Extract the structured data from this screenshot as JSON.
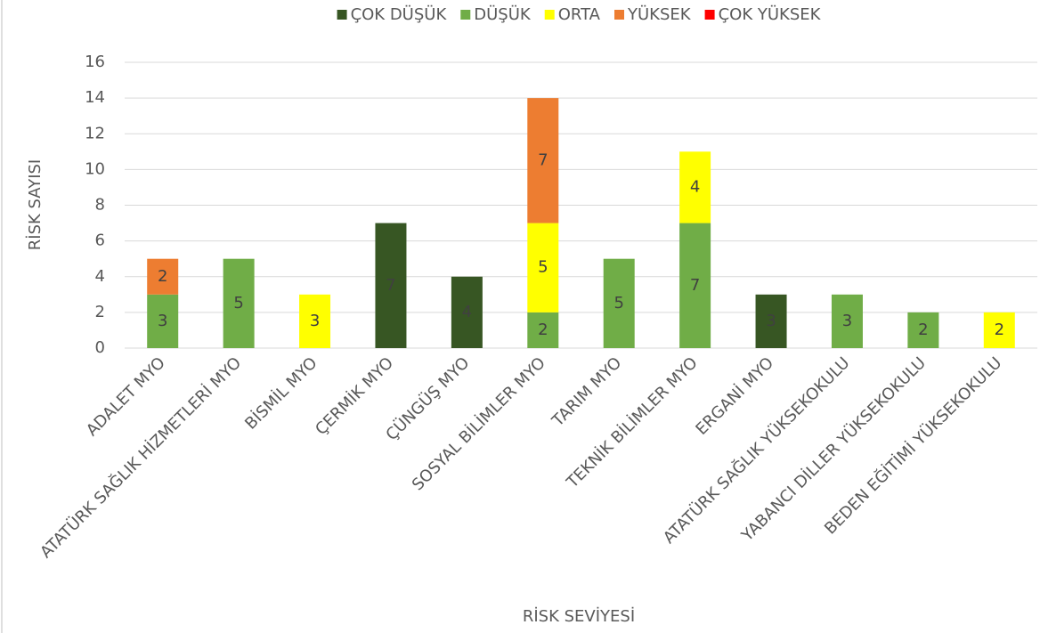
{
  "chart_data": {
    "type": "stacked_bar",
    "x_label": "RİSK SEVİYESİ",
    "y_label": "RİSK SAYISI",
    "categories": [
      "ADALET MYO",
      "ATATÜRK SAĞLIK HİZMETLERİ MYO",
      "BİSMİL MYO",
      "ÇERMİK MYO",
      "ÇÜNGÜŞ MYO",
      "SOSYAL BİLİMLER MYO",
      "TARIM MYO",
      "TEKNİK BİLİMLER MYO",
      "ERGANİ MYO",
      "ATATÜRK SAĞLIK YÜKSEKOKULU",
      "YABANCI DİLLER YÜKSEKOKULU",
      "BEDEN EĞİTİMİ YÜKSEKOKULU"
    ],
    "series": [
      {
        "name": "ÇOK DÜŞÜK",
        "color": "#375623",
        "values": [
          null,
          null,
          null,
          7,
          4,
          null,
          null,
          null,
          3,
          null,
          null,
          null
        ]
      },
      {
        "name": "DÜŞÜK",
        "color": "#70ad47",
        "values": [
          3,
          5,
          null,
          null,
          null,
          2,
          5,
          7,
          null,
          3,
          2,
          null
        ]
      },
      {
        "name": "ORTA",
        "color": "#ffff00",
        "values": [
          null,
          null,
          3,
          null,
          null,
          5,
          null,
          4,
          null,
          null,
          null,
          2
        ]
      },
      {
        "name": "YÜKSEK",
        "color": "#ed7d31",
        "values": [
          2,
          null,
          null,
          null,
          null,
          7,
          null,
          null,
          null,
          null,
          null,
          null
        ]
      },
      {
        "name": "ÇOK YÜKSEK",
        "color": "#ff0000",
        "values": [
          null,
          null,
          null,
          null,
          null,
          null,
          null,
          null,
          null,
          null,
          null,
          null
        ]
      }
    ],
    "ylim": [
      0,
      16
    ],
    "yticks": [
      0,
      2,
      4,
      6,
      8,
      10,
      12,
      14,
      16
    ],
    "grid": true,
    "legend": "top"
  }
}
